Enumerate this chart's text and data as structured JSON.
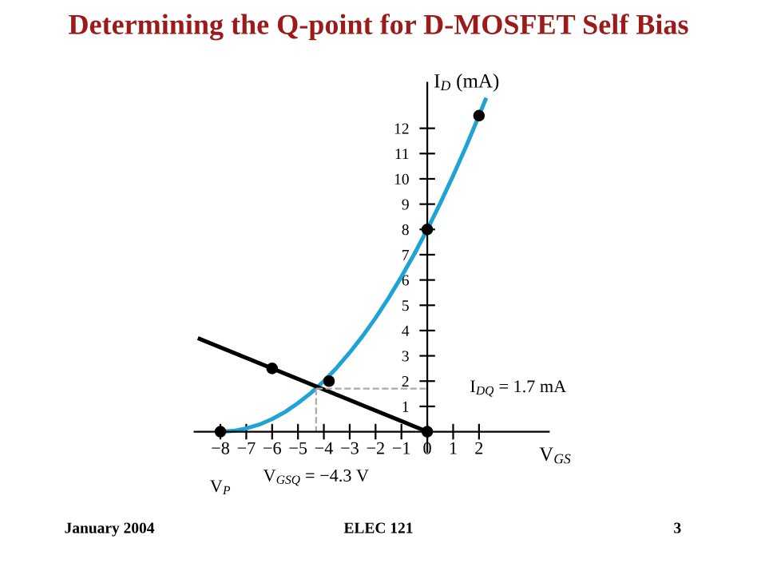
{
  "chart_data": {
    "type": "line",
    "title": "Determining the Q-point for D-MOSFET Self Bias",
    "xlabel": "V$_{GS}$",
    "ylabel": "I$_{D}$ (mA)",
    "xlim": [
      -9,
      4.7
    ],
    "ylim": [
      -0.8,
      13.8
    ],
    "xticks": [
      -8,
      -7,
      -6,
      -5,
      -4,
      -3,
      -2,
      -1,
      0,
      1,
      2
    ],
    "yticks": [
      1,
      2,
      3,
      4,
      5,
      6,
      7,
      8,
      9,
      10,
      11,
      12
    ],
    "grid": false,
    "series": [
      {
        "color": "#1fa3d4",
        "x": [
          -8,
          -7.5,
          -7,
          -6.5,
          -6,
          -5.5,
          -5,
          -4.5,
          -4,
          -3.5,
          -3,
          -2.5,
          -2,
          -1.5,
          -1,
          -0.5,
          0,
          0.5,
          1,
          1.5,
          2,
          2.25
        ],
        "values": [
          0,
          0.03,
          0.13,
          0.28,
          0.5,
          0.78,
          1.13,
          1.53,
          2,
          2.53,
          3.13,
          3.78,
          4.5,
          5.28,
          6.13,
          7.03,
          8,
          9.03,
          10.13,
          11.28,
          12.5,
          13.13
        ]
      },
      {
        "type": "line",
        "color": "#000000",
        "x": [
          -8.8,
          0
        ],
        "values": [
          3.67,
          0
        ]
      },
      {
        "type": "scatter",
        "color": "#000000",
        "x": [
          -8,
          -6,
          -3.8,
          0,
          2,
          0
        ],
        "values": [
          0,
          2.5,
          2,
          8,
          12.5,
          0
        ]
      }
    ],
    "ref_lines": [
      {
        "axis": "y",
        "value": 1.7,
        "label": "I$_{DQ}$ = 1.7 mA",
        "color": "#aaaaaa",
        "line_style": "dashed"
      },
      {
        "axis": "x",
        "value": -4.3,
        "label": "V$_{GSQ}$ = −4.3 V",
        "color": "#aaaaaa",
        "line_style": "dashed"
      }
    ],
    "annotations": [
      {
        "text": "V$_{P}$",
        "x": -8,
        "y": 0
      },
      "January 2004",
      "ELEC 121",
      "3"
    ]
  }
}
